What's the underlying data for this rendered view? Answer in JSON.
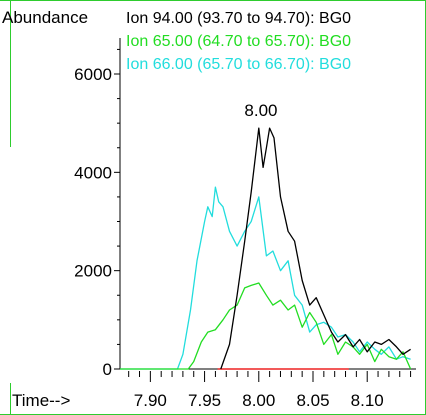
{
  "chart_data": {
    "type": "line",
    "ylabel": "Abundance",
    "xlabel": "Time-->",
    "xlim": [
      7.872,
      8.145
    ],
    "ylim": [
      0,
      6600
    ],
    "xticks": [
      7.9,
      7.95,
      8.0,
      8.05,
      8.1
    ],
    "xtick_labels": [
      "7.90",
      "7.95",
      "8.00",
      "8.05",
      "8.10"
    ],
    "yticks": [
      0,
      2000,
      4000,
      6000
    ],
    "ytick_labels": [
      "0",
      "2000",
      "4000",
      "6000"
    ],
    "peak_label": {
      "text": "8.00",
      "x": 8.002,
      "y": 5150
    },
    "baseline": {
      "x": [
        7.962,
        8.083
      ],
      "y": 0
    },
    "series": [
      {
        "name": "Ion  94.00 (93.70 to 94.70): BG0",
        "color": "#000000",
        "x": [
          7.965,
          7.973,
          7.98,
          7.987,
          7.993,
          8.0,
          8.004,
          8.007,
          8.01,
          8.014,
          8.02,
          8.027,
          8.033,
          8.04,
          8.047,
          8.053,
          8.06,
          8.067,
          8.073,
          8.08,
          8.087,
          8.093,
          8.1,
          8.107,
          8.113,
          8.12,
          8.127,
          8.133,
          8.14
        ],
        "y": [
          0,
          500,
          1500,
          2600,
          3600,
          4900,
          4100,
          4500,
          4900,
          4700,
          3500,
          2800,
          2600,
          1800,
          1300,
          1450,
          1100,
          750,
          550,
          700,
          450,
          600,
          350,
          550,
          500,
          600,
          450,
          300,
          400
        ]
      },
      {
        "name": "Ion  65.00 (64.70 to 65.70): BG0",
        "color": "#22dd22",
        "x": [
          7.872,
          7.935,
          7.94,
          7.947,
          7.953,
          7.96,
          7.967,
          7.973,
          7.98,
          7.987,
          7.993,
          8.0,
          8.007,
          8.013,
          8.02,
          8.027,
          8.033,
          8.04,
          8.047,
          8.053,
          8.06,
          8.067,
          8.073,
          8.08,
          8.087,
          8.093,
          8.1,
          8.107,
          8.113,
          8.12,
          8.127,
          8.133,
          8.14
        ],
        "y": [
          0,
          0,
          150,
          550,
          750,
          800,
          1000,
          1200,
          1300,
          1650,
          1700,
          1750,
          1500,
          1300,
          1400,
          1200,
          1300,
          850,
          1150,
          950,
          500,
          700,
          300,
          550,
          450,
          300,
          500,
          150,
          400,
          250,
          200,
          350,
          0
        ]
      },
      {
        "name": "Ion  66.00 (65.70 to 66.70): BG0",
        "color": "#22dddd",
        "x": [
          7.872,
          7.925,
          7.93,
          7.937,
          7.943,
          7.95,
          7.953,
          7.957,
          7.96,
          7.963,
          7.967,
          7.973,
          7.98,
          7.987,
          7.993,
          8.0,
          8.007,
          8.013,
          8.02,
          8.027,
          8.033,
          8.04,
          8.047,
          8.053,
          8.06,
          8.067,
          8.073,
          8.08,
          8.087,
          8.093,
          8.1,
          8.107,
          8.113,
          8.12,
          8.127,
          8.133,
          8.14
        ],
        "y": [
          0,
          0,
          300,
          1200,
          2200,
          3000,
          3300,
          3100,
          3700,
          3400,
          3300,
          2800,
          2500,
          2800,
          3000,
          3500,
          2300,
          2400,
          2000,
          2200,
          1500,
          1300,
          750,
          900,
          950,
          850,
          650,
          700,
          550,
          350,
          550,
          400,
          300,
          450,
          200,
          250,
          200
        ]
      }
    ]
  }
}
